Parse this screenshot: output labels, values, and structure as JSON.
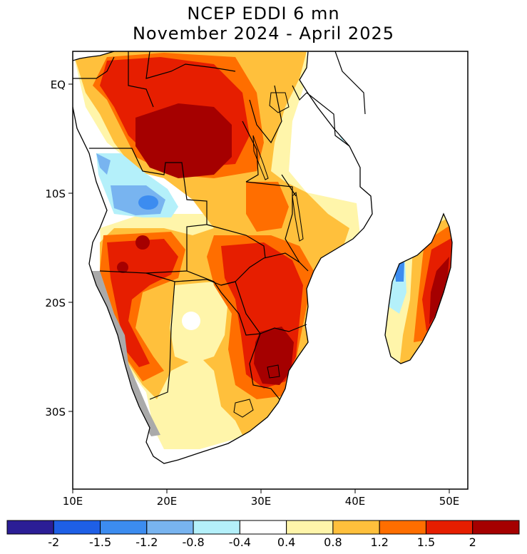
{
  "title": {
    "line1": "NCEP EDDI 6 mn",
    "line2": "November 2024 - April 2025"
  },
  "map": {
    "lat_labels": [
      "EQ",
      "10S",
      "20S",
      "30S"
    ],
    "lon_labels": [
      "10E",
      "20E",
      "30E",
      "40E",
      "50E"
    ],
    "no_data_color": "#aaaaaa",
    "ocean_color": "#ffffff"
  },
  "colorbar": {
    "labels": [
      "-2",
      "-1.5",
      "-1.2",
      "-0.8",
      "-0.4",
      "0.4",
      "0.8",
      "1.2",
      "1.5",
      "2"
    ],
    "colors": [
      "#2b1e96",
      "#1e5fe6",
      "#3c8cf0",
      "#78b4f0",
      "#b4f0fa",
      "#ffffff",
      "#fff5aa",
      "#ffc03c",
      "#ff6e00",
      "#e61e00",
      "#a50000"
    ]
  }
}
